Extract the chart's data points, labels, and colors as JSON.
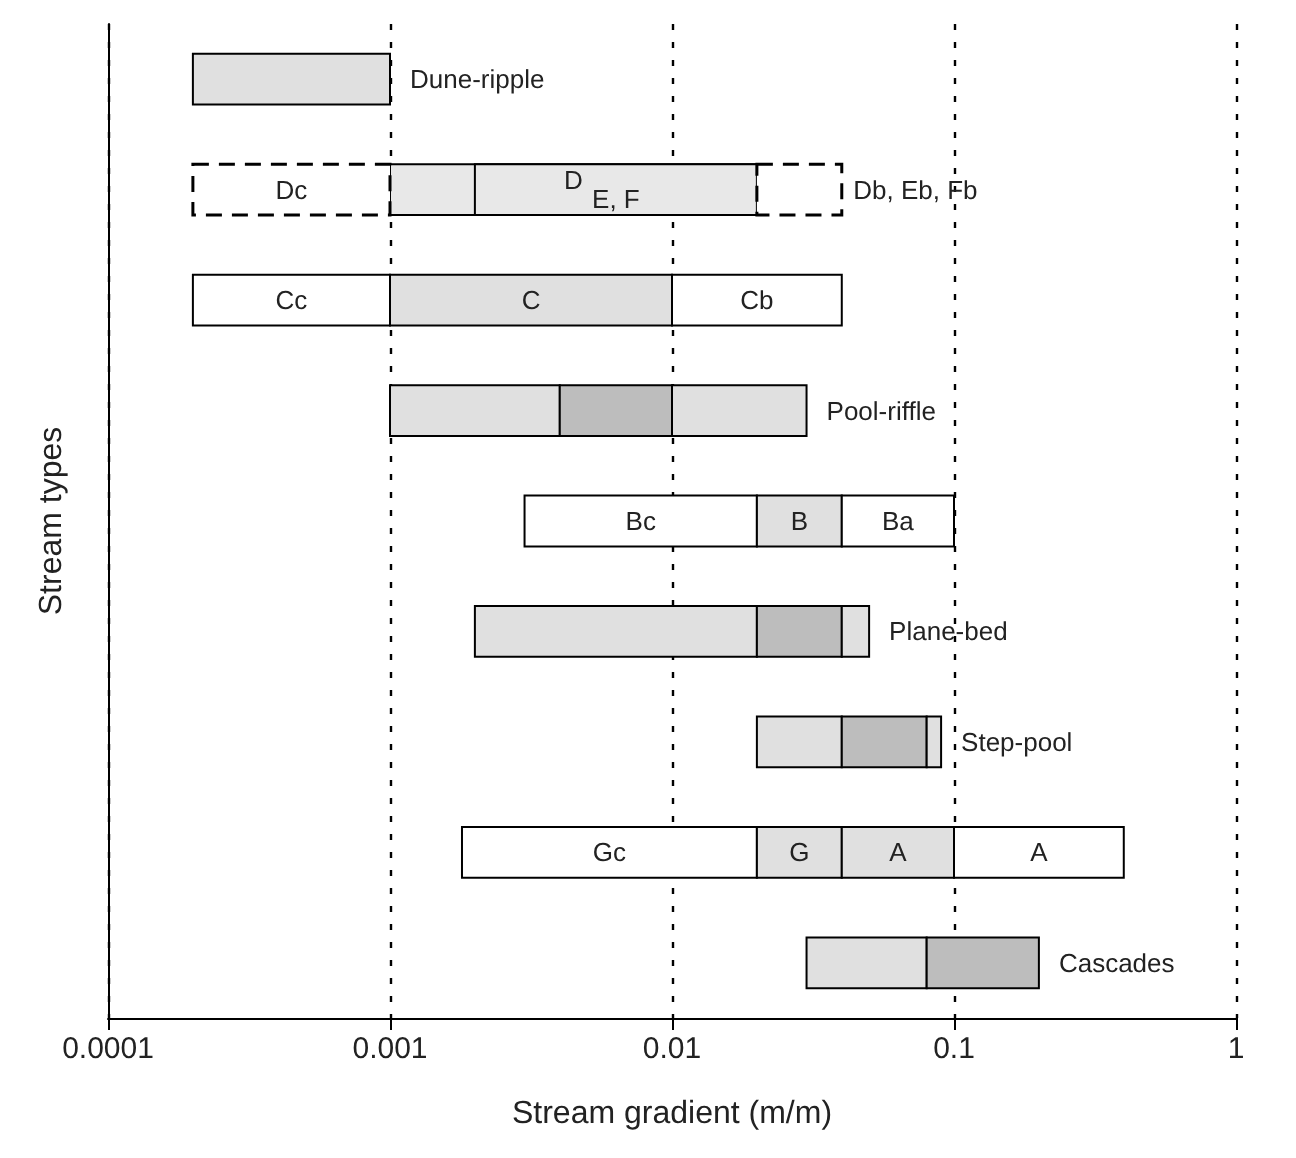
{
  "chart_data": {
    "type": "bar",
    "orientation": "horizontal",
    "log": "x",
    "xlabel": "Stream gradient (m/m)",
    "ylabel": "Stream types",
    "categories": [
      null,
      null,
      null,
      null,
      null,
      null,
      null,
      null,
      null
    ],
    "xlim": [
      0.0001,
      1
    ],
    "xticks": [
      0.0001,
      0.001,
      0.01,
      0.1,
      1
    ],
    "grid": "x",
    "series": [
      {
        "base": [
          0.0002,
          0.001,
          0.0002,
          0.001,
          0.003,
          0.002,
          0.02,
          0.0018,
          0.03
        ],
        "values": [
          0.0008,
          0.019,
          0.0008,
          0.003,
          0.017,
          0.018,
          0.02,
          0.0182,
          0.05
        ],
        "colors": [
          "#e0e0e0",
          "#e8e8e8",
          "#ffffff",
          "#e0e0e0",
          "#ffffff",
          "#e0e0e0",
          "#e0e0e0",
          "#ffffff",
          "#e0e0e0"
        ],
        "value_labels": [
          null,
          "D",
          "Cc",
          null,
          "Bc",
          null,
          null,
          "Gc",
          null
        ]
      },
      {
        "base": [
          null,
          0.002,
          0.001,
          0.004,
          0.02,
          0.02,
          0.04,
          0.02,
          0.08
        ],
        "values": [
          null,
          0.018,
          0.009,
          0.006,
          0.02,
          0.02,
          0.04,
          0.02,
          0.12
        ],
        "colors": [
          null,
          "#e8e8e8",
          "#e0e0e0",
          "#bdbdbd",
          "#e0e0e0",
          "#bdbdbd",
          "#bdbdbd",
          "#e0e0e0",
          "#bdbdbd"
        ],
        "value_labels": [
          null,
          "E, F",
          "C",
          null,
          "B",
          null,
          null,
          "G",
          null
        ]
      },
      {
        "base": [
          null,
          null,
          0.01,
          0.01,
          0.04,
          0.04,
          0.08,
          0.04,
          null
        ],
        "values": [
          null,
          null,
          0.03,
          0.02,
          0.06,
          0.01,
          0.01,
          0.06,
          null
        ],
        "colors": [
          null,
          null,
          "#ffffff",
          "#e0e0e0",
          "#ffffff",
          "#e0e0e0",
          "#e0e0e0",
          "#e0e0e0",
          null
        ],
        "value_labels": [
          null,
          null,
          "Cb",
          null,
          "Ba",
          null,
          null,
          "A",
          null
        ]
      },
      {
        "base": [
          null,
          null,
          null,
          null,
          null,
          null,
          null,
          0.1,
          null
        ],
        "values": [
          null,
          null,
          null,
          null,
          null,
          null,
          null,
          0.3,
          null
        ],
        "colors": [
          null,
          null,
          null,
          null,
          null,
          null,
          null,
          "#ffffff",
          null
        ],
        "value_labels": [
          null,
          null,
          null,
          null,
          null,
          null,
          null,
          "A",
          null
        ]
      },
      {
        "line_style": "dashed",
        "base": [
          null,
          0.0002,
          null,
          null,
          null,
          null,
          null,
          null,
          null
        ],
        "values": [
          null,
          0.0008,
          null,
          null,
          null,
          null,
          null,
          null,
          null
        ],
        "colors": [
          null,
          "#ffffff",
          null,
          null,
          null,
          null,
          null,
          null,
          null
        ],
        "value_labels": [
          null,
          "Dc",
          null,
          null,
          null,
          null,
          null,
          null,
          null
        ]
      },
      {
        "line_style": "dashed",
        "base": [
          null,
          0.02,
          null,
          null,
          null,
          null,
          null,
          null,
          null
        ],
        "values": [
          null,
          0.02,
          null,
          null,
          null,
          null,
          null,
          null,
          null
        ],
        "colors": [
          null,
          "#ffffff",
          null,
          null,
          null,
          null,
          null,
          null,
          null
        ],
        "value_labels": [
          null,
          "Db, Eb, Fb",
          null,
          null,
          null,
          null,
          null,
          null,
          null
        ]
      }
    ],
    "annotations": [
      {
        "text": "Dune-ripple",
        "x": 0.001
      },
      {
        "text": "Pool-riffle",
        "x": 0.03
      },
      {
        "text": "Plane-bed",
        "x": 0.05
      },
      {
        "text": "Step-pool",
        "x": 0.09
      },
      {
        "text": "Cascades",
        "x": 0.2
      }
    ]
  }
}
